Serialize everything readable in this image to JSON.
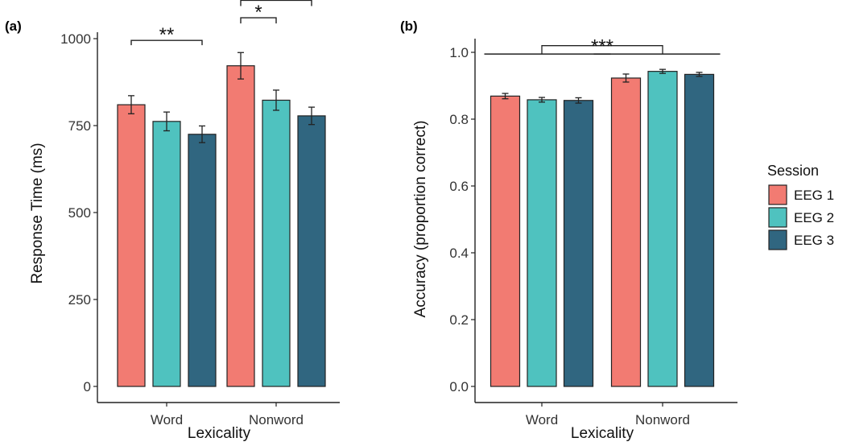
{
  "chart_data": [
    {
      "panel": "(a)",
      "type": "bar",
      "categories": [
        "Word",
        "Nonword"
      ],
      "series": [
        {
          "name": "EEG 1",
          "values": [
            810,
            922
          ],
          "errors": [
            26,
            38
          ]
        },
        {
          "name": "EEG 2",
          "values": [
            762,
            823
          ],
          "errors": [
            27,
            29
          ]
        },
        {
          "name": "EEG 3",
          "values": [
            725,
            778
          ],
          "errors": [
            24,
            25
          ]
        }
      ],
      "xlabel": "Lexicality",
      "ylabel": "Response Time (ms)",
      "ylim": [
        0,
        1000
      ],
      "yticks": [
        0,
        250,
        500,
        750,
        1000
      ],
      "significance": [
        {
          "group": 0,
          "from": 0,
          "to": 2,
          "label": "**"
        },
        {
          "group": 1,
          "from": 0,
          "to": 1,
          "label": "*"
        },
        {
          "group": 1,
          "from": 0,
          "to": 2,
          "label": "***"
        }
      ]
    },
    {
      "panel": "(b)",
      "type": "bar",
      "categories": [
        "Word",
        "Nonword"
      ],
      "series": [
        {
          "name": "EEG 1",
          "values": [
            0.869,
            0.923
          ],
          "errors": [
            0.008,
            0.012
          ]
        },
        {
          "name": "EEG 2",
          "values": [
            0.858,
            0.943
          ],
          "errors": [
            0.007,
            0.006
          ]
        },
        {
          "name": "EEG 3",
          "values": [
            0.856,
            0.934
          ],
          "errors": [
            0.008,
            0.006
          ]
        }
      ],
      "xlabel": "Lexicality",
      "ylabel": "Accuracy (proportion correct)",
      "ylim": [
        0,
        1.0
      ],
      "yticks": [
        "0.0",
        "0.2",
        "0.4",
        "0.6",
        "0.8",
        "1.0"
      ],
      "significance": [
        {
          "groups": [
            0,
            1
          ],
          "label": "***"
        }
      ]
    }
  ],
  "legend": {
    "title": "Session",
    "position": "right",
    "items": [
      {
        "label": "EEG 1",
        "color": "#F27B72"
      },
      {
        "label": "EEG 2",
        "color": "#4FC2BF"
      },
      {
        "label": "EEG 3",
        "color": "#306680"
      }
    ]
  },
  "colors": {
    "eeg1": "#F27B72",
    "eeg2": "#4FC2BF",
    "eeg3": "#306680",
    "bar_outline": "#222222"
  }
}
